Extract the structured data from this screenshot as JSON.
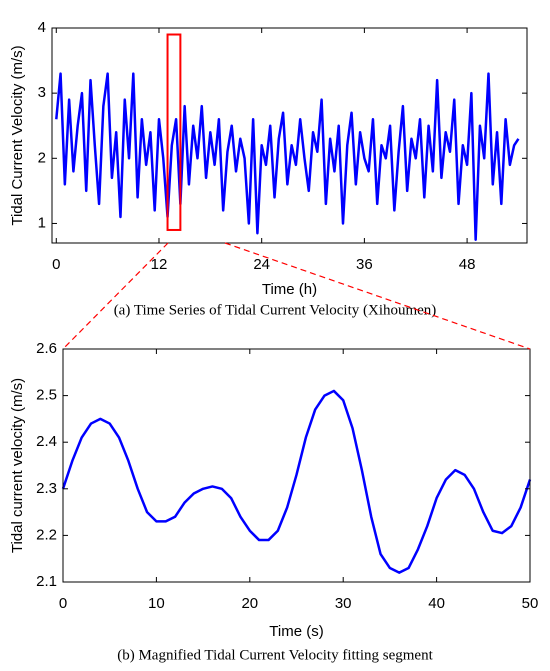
{
  "chart_data": [
    {
      "type": "line",
      "xlabel": "Time (h)",
      "ylabel": "Tidal Current Velocity (m/s)",
      "caption": "(a) Time Series of Tidal Current Velocity (Xihoumen)",
      "xlim": [
        -0.5,
        55
      ],
      "xticks": [
        0,
        12,
        24,
        36,
        48
      ],
      "ylim": [
        0.7,
        4
      ],
      "yticks": [
        1,
        2,
        3,
        4
      ],
      "highlight": {
        "x": [
          13,
          14.5
        ],
        "y": [
          0.9,
          3.9
        ],
        "color": "#ff0000"
      },
      "series": [
        {
          "color": "#0000ff",
          "x": [
            0,
            0.5,
            1,
            1.5,
            2,
            2.5,
            3,
            3.5,
            4,
            4.5,
            5,
            5.5,
            6,
            6.5,
            7,
            7.5,
            8,
            8.5,
            9,
            9.5,
            10,
            10.5,
            11,
            11.5,
            12,
            12.5,
            13,
            13.5,
            14,
            14.5,
            15,
            15.5,
            16,
            16.5,
            17,
            17.5,
            18,
            18.5,
            19,
            19.5,
            20,
            20.5,
            21,
            21.5,
            22,
            22.5,
            23,
            23.5,
            24,
            24.5,
            25,
            25.5,
            26,
            26.5,
            27,
            27.5,
            28,
            28.5,
            29,
            29.5,
            30,
            30.5,
            31,
            31.5,
            32,
            32.5,
            33,
            33.5,
            34,
            34.5,
            35,
            35.5,
            36,
            36.5,
            37,
            37.5,
            38,
            38.5,
            39,
            39.5,
            40,
            40.5,
            41,
            41.5,
            42,
            42.5,
            43,
            43.5,
            44,
            44.5,
            45,
            45.5,
            46,
            46.5,
            47,
            47.5,
            48,
            48.5,
            49,
            49.5,
            50,
            50.5,
            51,
            51.5,
            52,
            52.5,
            53,
            53.5,
            54
          ],
          "values": [
            2.6,
            3.3,
            1.6,
            2.9,
            1.8,
            2.5,
            3.0,
            1.5,
            3.2,
            2.2,
            1.3,
            2.8,
            3.3,
            1.7,
            2.4,
            1.1,
            2.9,
            2.0,
            3.3,
            1.4,
            2.6,
            1.9,
            2.4,
            1.2,
            2.6,
            2.0,
            1.1,
            2.2,
            2.6,
            1.3,
            2.8,
            1.6,
            2.5,
            2.0,
            2.8,
            1.7,
            2.4,
            1.9,
            2.6,
            1.2,
            2.1,
            2.5,
            1.8,
            2.3,
            2.0,
            1.0,
            2.6,
            0.85,
            2.2,
            1.9,
            2.5,
            1.4,
            2.3,
            2.7,
            1.6,
            2.2,
            1.9,
            2.6,
            2.0,
            1.5,
            2.4,
            2.1,
            2.9,
            1.3,
            2.3,
            1.8,
            2.5,
            1.0,
            2.2,
            2.7,
            1.6,
            2.4,
            2.0,
            1.8,
            2.6,
            1.3,
            2.2,
            2.0,
            2.5,
            1.2,
            2.1,
            2.8,
            1.5,
            2.3,
            2.0,
            2.6,
            1.4,
            2.5,
            1.8,
            3.2,
            1.7,
            2.4,
            2.1,
            2.9,
            1.3,
            2.2,
            1.9,
            3.0,
            0.75,
            2.5,
            2.0,
            3.3,
            1.6,
            2.4,
            1.3,
            2.6,
            1.9,
            2.2,
            2.3
          ]
        }
      ]
    },
    {
      "type": "line",
      "xlabel": "Time (s)",
      "ylabel": "Tidal current velocity (m/s)",
      "caption": "(b) Magnified Tidal Current Velocity fitting segment",
      "xlim": [
        0,
        50
      ],
      "xticks": [
        0,
        10,
        20,
        30,
        40,
        50
      ],
      "ylim": [
        2.1,
        2.6
      ],
      "yticks": [
        2.1,
        2.2,
        2.3,
        2.4,
        2.5,
        2.6
      ],
      "series": [
        {
          "color": "#0000ff",
          "x": [
            0,
            1,
            2,
            3,
            4,
            5,
            6,
            7,
            8,
            9,
            10,
            11,
            12,
            13,
            14,
            15,
            16,
            17,
            18,
            19,
            20,
            21,
            22,
            23,
            24,
            25,
            26,
            27,
            28,
            29,
            30,
            31,
            32,
            33,
            34,
            35,
            36,
            37,
            38,
            39,
            40,
            41,
            42,
            43,
            44,
            45,
            46,
            47,
            48,
            49,
            50
          ],
          "values": [
            2.3,
            2.36,
            2.41,
            2.44,
            2.45,
            2.44,
            2.41,
            2.36,
            2.3,
            2.25,
            2.23,
            2.23,
            2.24,
            2.27,
            2.29,
            2.3,
            2.305,
            2.3,
            2.28,
            2.24,
            2.21,
            2.19,
            2.19,
            2.21,
            2.26,
            2.33,
            2.41,
            2.47,
            2.5,
            2.51,
            2.49,
            2.43,
            2.34,
            2.24,
            2.16,
            2.13,
            2.12,
            2.13,
            2.17,
            2.22,
            2.28,
            2.32,
            2.34,
            2.33,
            2.3,
            2.25,
            2.21,
            2.205,
            2.22,
            2.26,
            2.32
          ]
        }
      ]
    }
  ]
}
